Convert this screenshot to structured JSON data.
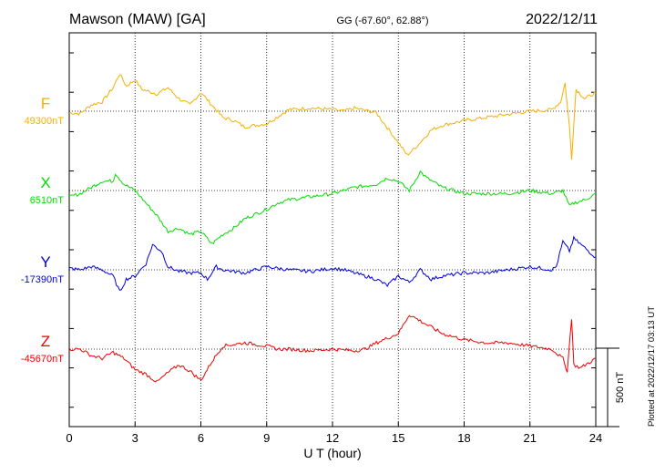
{
  "header": {
    "station": "Mawson (MAW)  [GA]",
    "coords": "GG (-67.60°,  62.88°)",
    "date": "2022/12/11"
  },
  "plotted_note": "Plotted at 2022/12/17 03:13 UT",
  "scale_label": "500 nT",
  "colors": {
    "F": "#f5b000",
    "X": "#00dd00",
    "Y": "#0000dd",
    "Z": "#ee0000"
  },
  "chart_data": {
    "type": "line",
    "xlabel": "U T (hour)",
    "xlim": [
      0,
      24
    ],
    "x_ticks": [
      0,
      3,
      6,
      9,
      12,
      15,
      18,
      21,
      24
    ],
    "x_tick_labels": [
      "0",
      "3",
      "6",
      "9",
      "12",
      "15",
      "18",
      "21",
      "24"
    ],
    "scale_bar_nT": 500,
    "grid": true,
    "series": [
      {
        "name": "F",
        "baseline_label": "49300nT",
        "baseline_nT": 49300,
        "points": [
          [
            0,
            -10
          ],
          [
            0.5,
            -15
          ],
          [
            1,
            40
          ],
          [
            1.5,
            60
          ],
          [
            2,
            150
          ],
          [
            2.3,
            240
          ],
          [
            2.6,
            160
          ],
          [
            3,
            200
          ],
          [
            3.3,
            140
          ],
          [
            4,
            110
          ],
          [
            4.5,
            150
          ],
          [
            5,
            80
          ],
          [
            5.5,
            40
          ],
          [
            6,
            120
          ],
          [
            6.5,
            40
          ],
          [
            7,
            -40
          ],
          [
            7.5,
            -60
          ],
          [
            8,
            -100
          ],
          [
            9,
            -80
          ],
          [
            10,
            10
          ],
          [
            11,
            20
          ],
          [
            12,
            10
          ],
          [
            12.5,
            0
          ],
          [
            13,
            20
          ],
          [
            14,
            -10
          ],
          [
            15,
            -200
          ],
          [
            15.4,
            -280
          ],
          [
            15.8,
            -230
          ],
          [
            16.5,
            -120
          ],
          [
            17,
            -90
          ],
          [
            18,
            -60
          ],
          [
            19,
            -40
          ],
          [
            20,
            -20
          ],
          [
            21,
            0
          ],
          [
            22,
            10
          ],
          [
            22.4,
            60
          ],
          [
            22.6,
            180
          ],
          [
            22.8,
            -100
          ],
          [
            22.9,
            -300
          ],
          [
            23.1,
            140
          ],
          [
            23.5,
            80
          ],
          [
            24,
            120
          ]
        ]
      },
      {
        "name": "X",
        "baseline_label": "6510nT",
        "baseline_nT": 6510,
        "points": [
          [
            0,
            -40
          ],
          [
            0.5,
            -20
          ],
          [
            1,
            20
          ],
          [
            1.5,
            60
          ],
          [
            2,
            60
          ],
          [
            2.1,
            110
          ],
          [
            2.5,
            40
          ],
          [
            3,
            0
          ],
          [
            3.5,
            -80
          ],
          [
            4,
            -160
          ],
          [
            4.5,
            -260
          ],
          [
            5,
            -240
          ],
          [
            5.5,
            -280
          ],
          [
            6,
            -260
          ],
          [
            6.5,
            -340
          ],
          [
            7,
            -280
          ],
          [
            7.5,
            -240
          ],
          [
            8,
            -180
          ],
          [
            9,
            -120
          ],
          [
            9.5,
            -80
          ],
          [
            10,
            -60
          ],
          [
            11,
            -40
          ],
          [
            12,
            -20
          ],
          [
            13,
            20
          ],
          [
            14,
            40
          ],
          [
            14.5,
            80
          ],
          [
            15,
            60
          ],
          [
            15.5,
            0
          ],
          [
            16,
            120
          ],
          [
            16.3,
            80
          ],
          [
            17,
            20
          ],
          [
            18,
            -20
          ],
          [
            19,
            -20
          ],
          [
            20,
            -20
          ],
          [
            21,
            0
          ],
          [
            22,
            -20
          ],
          [
            22.5,
            0
          ],
          [
            22.8,
            -100
          ],
          [
            23,
            -80
          ],
          [
            23.5,
            -60
          ],
          [
            24,
            -20
          ]
        ]
      },
      {
        "name": "Y",
        "baseline_label": "-17390nT",
        "baseline_nT": -17390,
        "points": [
          [
            0,
            10
          ],
          [
            0.5,
            0
          ],
          [
            1,
            20
          ],
          [
            1.5,
            0
          ],
          [
            2,
            -40
          ],
          [
            2.3,
            -140
          ],
          [
            2.6,
            -60
          ],
          [
            3,
            -40
          ],
          [
            3.5,
            40
          ],
          [
            3.8,
            160
          ],
          [
            4.2,
            120
          ],
          [
            4.5,
            20
          ],
          [
            5,
            -10
          ],
          [
            5.5,
            -20
          ],
          [
            6,
            -20
          ],
          [
            6.3,
            -60
          ],
          [
            6.7,
            20
          ],
          [
            7,
            0
          ],
          [
            8,
            -20
          ],
          [
            9,
            20
          ],
          [
            10,
            0
          ],
          [
            11,
            -10
          ],
          [
            12,
            10
          ],
          [
            12.5,
            0
          ],
          [
            13,
            -20
          ],
          [
            14,
            -60
          ],
          [
            14.5,
            -100
          ],
          [
            15,
            -40
          ],
          [
            15.5,
            -80
          ],
          [
            16,
            0
          ],
          [
            16.5,
            -60
          ],
          [
            17,
            -40
          ],
          [
            18,
            -20
          ],
          [
            19,
            -20
          ],
          [
            20,
            0
          ],
          [
            21,
            20
          ],
          [
            22,
            0
          ],
          [
            22.2,
            20
          ],
          [
            22.5,
            180
          ],
          [
            22.8,
            120
          ],
          [
            23,
            200
          ],
          [
            23.5,
            140
          ],
          [
            24,
            80
          ]
        ]
      },
      {
        "name": "Z",
        "baseline_label": "-45670nT",
        "baseline_nT": -45670,
        "points": [
          [
            0,
            0
          ],
          [
            0.5,
            0
          ],
          [
            1,
            -40
          ],
          [
            1.5,
            -60
          ],
          [
            2,
            -20
          ],
          [
            2.5,
            -60
          ],
          [
            3,
            -130
          ],
          [
            3.5,
            -160
          ],
          [
            4,
            -210
          ],
          [
            4.5,
            -150
          ],
          [
            5,
            -100
          ],
          [
            5.5,
            -140
          ],
          [
            6,
            -200
          ],
          [
            6.5,
            -80
          ],
          [
            7,
            20
          ],
          [
            8,
            40
          ],
          [
            9,
            20
          ],
          [
            9.5,
            0
          ],
          [
            10,
            0
          ],
          [
            11,
            -10
          ],
          [
            12,
            0
          ],
          [
            13,
            -10
          ],
          [
            13.5,
            0
          ],
          [
            14,
            40
          ],
          [
            15,
            100
          ],
          [
            15.5,
            220
          ],
          [
            16,
            180
          ],
          [
            17,
            100
          ],
          [
            18,
            60
          ],
          [
            19,
            40
          ],
          [
            20,
            40
          ],
          [
            21,
            20
          ],
          [
            22,
            0
          ],
          [
            22.5,
            -60
          ],
          [
            22.7,
            -140
          ],
          [
            22.9,
            200
          ],
          [
            23,
            -100
          ],
          [
            23.3,
            -120
          ],
          [
            24,
            -60
          ]
        ]
      }
    ]
  }
}
